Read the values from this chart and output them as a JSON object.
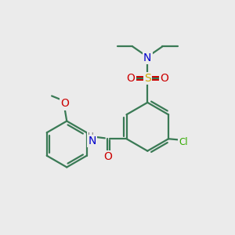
{
  "bg_color": "#ebebeb",
  "bond_color": "#3a7a55",
  "bond_width": 1.6,
  "atom_colors": {
    "N": "#0000cc",
    "O": "#cc0000",
    "S": "#ccaa00",
    "Cl": "#33aa00",
    "H": "#777777"
  },
  "font_size": 9,
  "font_size_small": 8.5,
  "font_size_large": 10
}
